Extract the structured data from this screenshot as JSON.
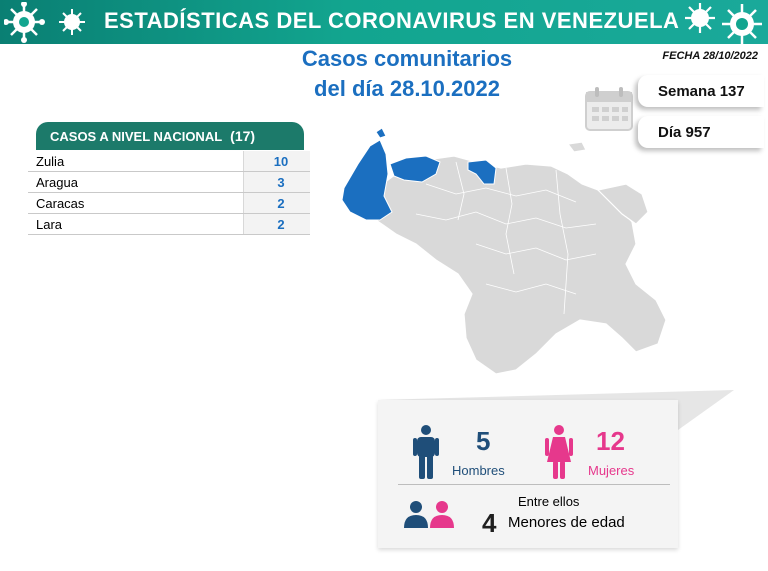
{
  "header": {
    "title": "ESTADÍSTICAS DEL CORONAVIRUS EN VENEZUELA",
    "left_icon": "virus-icon",
    "right_icon": "virus-icon"
  },
  "report": {
    "title_line1": "Casos comunitarios",
    "title_line2": "del día 28.10.2022",
    "fecha": "FECHA 28/10/2022",
    "semana": "Semana 137",
    "dia": "Día 957",
    "calendar_icon": "calendar-icon"
  },
  "table": {
    "header_label": "CASOS A NIVEL NACIONAL",
    "header_count": "(17)",
    "rows": [
      {
        "state": "Zulia",
        "cases": "10"
      },
      {
        "state": "Aragua",
        "cases": "3"
      },
      {
        "state": "Caracas",
        "cases": "2"
      },
      {
        "state": "Lara",
        "cases": "2"
      }
    ]
  },
  "map": {
    "highlight_color": "#1b6fc0",
    "base_color": "#d9d9d9"
  },
  "summary": {
    "men_count": "5",
    "men_label": "Hombres",
    "women_count": "12",
    "women_label": "Mujeres",
    "minors_intro": "Entre ellos",
    "minors_count": "4",
    "minors_label": "Menores de edad",
    "men_color": "#1f4e79",
    "women_color": "#e6388c"
  }
}
